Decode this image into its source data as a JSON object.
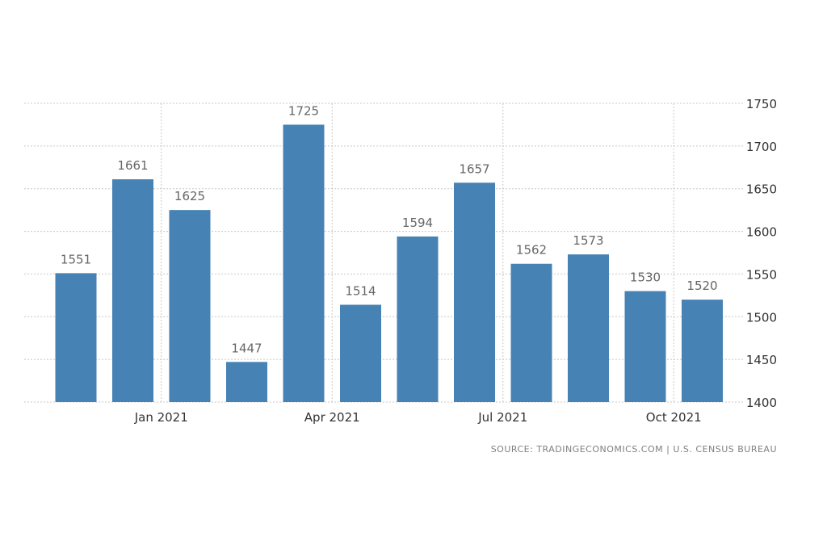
{
  "chart_data": {
    "type": "bar",
    "title": "",
    "xlabel": "",
    "ylabel": "",
    "values": [
      1551,
      1661,
      1625,
      1447,
      1725,
      1514,
      1594,
      1657,
      1562,
      1573,
      1530,
      1520
    ],
    "data_labels": [
      "1551",
      "1661",
      "1625",
      "1447",
      "1725",
      "1514",
      "1594",
      "1657",
      "1562",
      "1573",
      "1530",
      "1520"
    ],
    "x_ticks": [
      {
        "label": "Jan 2021",
        "after_bar_index": 1
      },
      {
        "label": "Apr 2021",
        "after_bar_index": 4
      },
      {
        "label": "Jul 2021",
        "after_bar_index": 7
      },
      {
        "label": "Oct 2021",
        "after_bar_index": 10
      }
    ],
    "y_ticks": [
      "1400",
      "1450",
      "1500",
      "1550",
      "1600",
      "1650",
      "1700",
      "1750"
    ],
    "ylim": [
      1400,
      1750
    ],
    "y_axis_position": "right",
    "grid": true,
    "bar_color": "#4682b4"
  },
  "source_text": "SOURCE: TRADINGECONOMICS.COM | U.S. CENSUS BUREAU"
}
